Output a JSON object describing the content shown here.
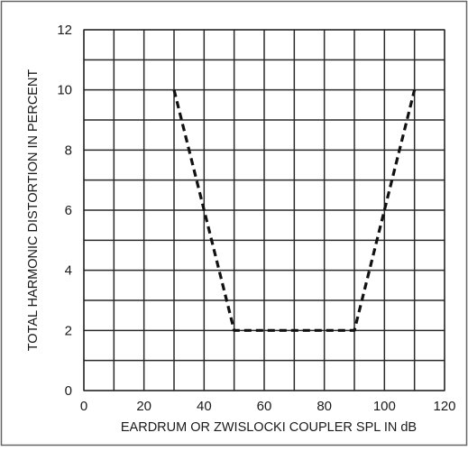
{
  "chart_data": {
    "type": "line",
    "title": "",
    "xlabel": "EARDRUM OR ZWISLOCKI COUPLER SPL IN dB",
    "ylabel": "TOTAL HARMONIC DISTORTION IN PERCENT",
    "xlim": [
      0,
      120
    ],
    "ylim": [
      0,
      12
    ],
    "x_ticks": [
      "0",
      "20",
      "40",
      "60",
      "80",
      "100",
      "120"
    ],
    "y_ticks": [
      "0",
      "2",
      "4",
      "6",
      "8",
      "10",
      "12"
    ],
    "grid": true,
    "grid_x_step": 10,
    "grid_y_step": 1,
    "line_style": "dashed",
    "line_color": "#111111",
    "series": [
      {
        "x": [
          30,
          50,
          90,
          110
        ],
        "y": [
          10,
          2,
          2,
          10
        ]
      }
    ]
  }
}
